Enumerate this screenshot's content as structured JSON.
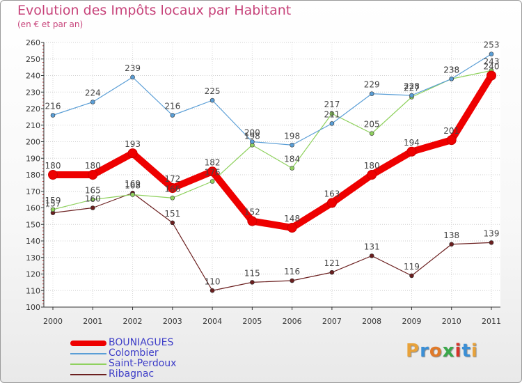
{
  "chart_data": {
    "type": "line",
    "title": "Evolution des Impôts locaux par Habitant",
    "subtitle": "(en € et par an)",
    "xlabel": "",
    "ylabel": "",
    "x": [
      "2000",
      "2001",
      "2002",
      "2003",
      "2004",
      "2005",
      "2006",
      "2007",
      "2008",
      "2009",
      "2010",
      "2011"
    ],
    "ylim": [
      100,
      260
    ],
    "yticks": [
      100,
      110,
      120,
      130,
      140,
      150,
      160,
      170,
      180,
      190,
      200,
      210,
      220,
      230,
      240,
      250,
      260
    ],
    "grid": "horizontal",
    "legend_position": "bottom-left",
    "series": [
      {
        "name": "BOUNIAGUES",
        "color": "#ee0000",
        "values": [
          180,
          180,
          193,
          172,
          182,
          152,
          148,
          163,
          180,
          194,
          201,
          240
        ]
      },
      {
        "name": "Colombier",
        "color": "#5a9ed6",
        "values": [
          216,
          224,
          239,
          216,
          225,
          200,
          198,
          211,
          229,
          228,
          238,
          253
        ]
      },
      {
        "name": "Saint-Perdoux",
        "color": "#8fd15e",
        "values": [
          159,
          165,
          168,
          166,
          176,
          198,
          184,
          217,
          205,
          227,
          238,
          243
        ]
      },
      {
        "name": "Ribagnac",
        "color": "#6b1f1f",
        "values": [
          157,
          160,
          169,
          151,
          110,
          115,
          116,
          121,
          131,
          119,
          138,
          139
        ]
      }
    ]
  },
  "logo": {
    "letters": [
      "P",
      "r",
      "o",
      "x",
      "i",
      "t",
      "i"
    ],
    "colors": [
      "#e8a23a",
      "#3a8fd6",
      "#e07a2a",
      "#3aa84a",
      "#d6342a",
      "#3a8fd6",
      "#e8a23a"
    ]
  }
}
